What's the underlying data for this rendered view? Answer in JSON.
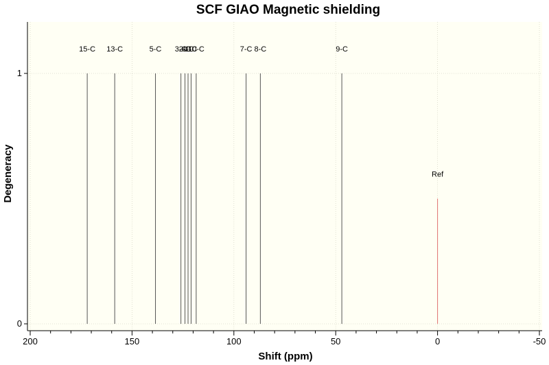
{
  "chart_data": {
    "type": "line",
    "title": "SCF GIAO Magnetic shielding",
    "xlabel": "Shift (ppm)",
    "ylabel": "Degeneracy",
    "xlim": [
      200,
      -50
    ],
    "ylim": [
      0,
      1.2
    ],
    "x_ticks": [
      200,
      150,
      100,
      50,
      0,
      -50
    ],
    "y_ticks": [
      0,
      1
    ],
    "grid": true,
    "background_color": "#fffff4",
    "line_color": "#555555",
    "ref_color": "#e07070",
    "peaks": [
      {
        "label": "15-C",
        "shift": 172,
        "degeneracy": 1
      },
      {
        "label": "13-C",
        "shift": 158.5,
        "degeneracy": 1
      },
      {
        "label": "5-C",
        "shift": 138.5,
        "degeneracy": 1
      },
      {
        "label": "3-C",
        "shift": 126,
        "degeneracy": 1
      },
      {
        "label": "2-C",
        "shift": 124,
        "degeneracy": 1
      },
      {
        "label": "4-C",
        "shift": 122.5,
        "degeneracy": 1
      },
      {
        "label": "1-C",
        "shift": 121,
        "degeneracy": 1
      },
      {
        "label": "10-C",
        "shift": 118.5,
        "degeneracy": 1
      },
      {
        "label": "7-C",
        "shift": 94,
        "degeneracy": 1
      },
      {
        "label": "8-C",
        "shift": 87,
        "degeneracy": 1
      },
      {
        "label": "9-C",
        "shift": 47,
        "degeneracy": 1
      }
    ],
    "reference": {
      "label": "Ref",
      "shift": 0,
      "degeneracy": 0.5
    }
  }
}
